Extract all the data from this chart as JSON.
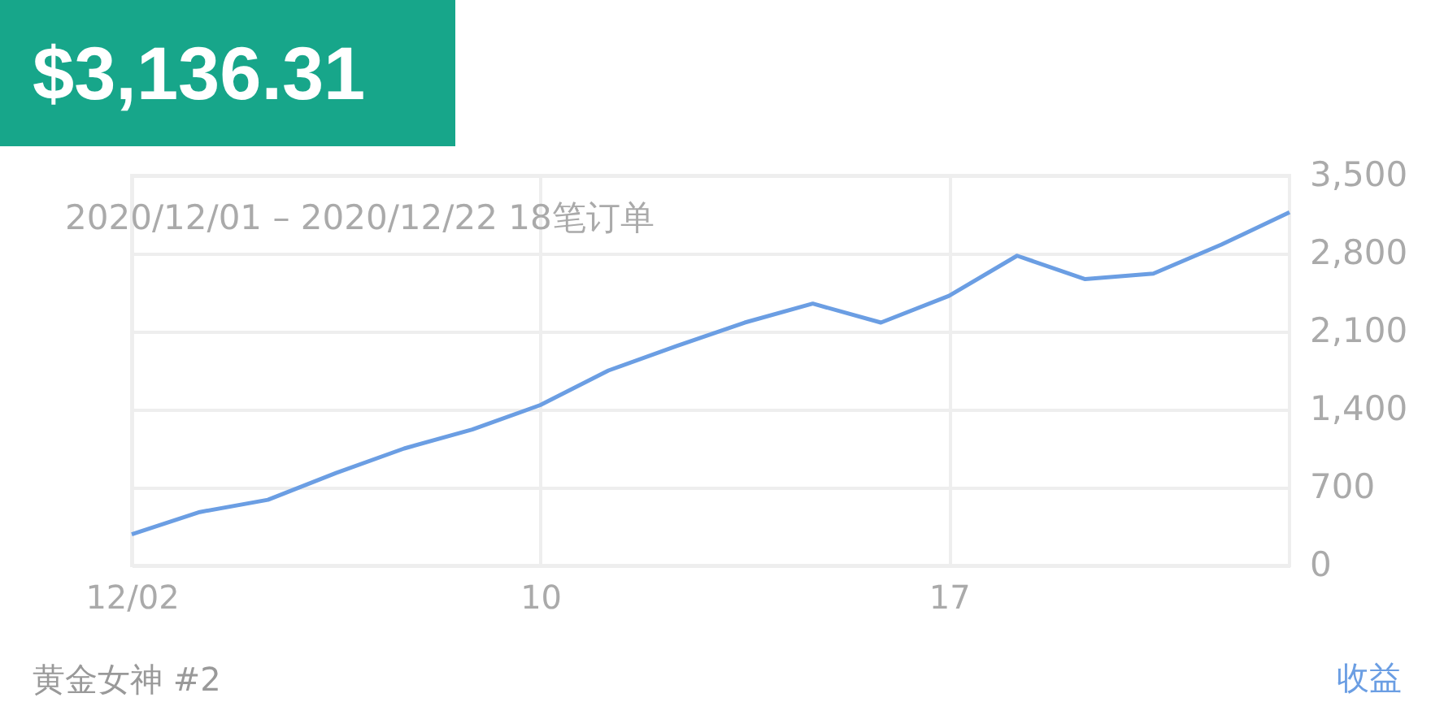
{
  "chart_data": {
    "type": "line",
    "title": "$3,136.31",
    "subtitle": "2020/12/01 – 2020/12/22 18笔订单",
    "categories": [
      "12/02",
      null,
      null,
      null,
      null,
      null,
      "10",
      null,
      null,
      null,
      null,
      null,
      "17",
      null,
      null,
      null,
      null,
      null
    ],
    "series": [
      {
        "color": "#6b9ee3",
        "values": [
          280,
          480,
          590,
          830,
          1050,
          1220,
          1440,
          1750,
          1970,
          2180,
          2350,
          2180,
          2420,
          2780,
          2570,
          2620,
          2880,
          3170
        ]
      }
    ],
    "ylim": [
      0,
      3500
    ],
    "yticks": [
      0,
      700,
      {
        "value": 1400,
        "label": "1,400"
      },
      {
        "value": 2100,
        "label": "2,100"
      },
      {
        "value": 2800,
        "label": "2,800"
      },
      {
        "value": 3500,
        "label": "3,500"
      }
    ],
    "grid": true,
    "legend": false,
    "marker": "none",
    "line_style": "solid",
    "annotations": [
      "黄金女神 #2",
      "收益"
    ]
  }
}
